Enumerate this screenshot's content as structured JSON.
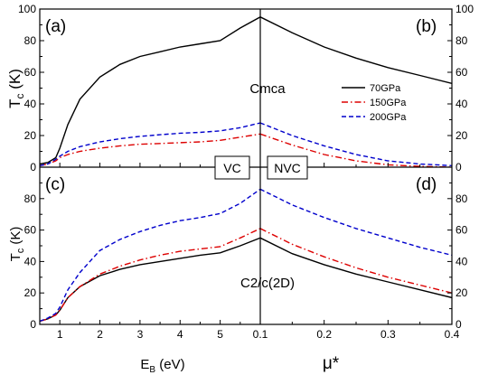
{
  "figure": {
    "y_axis_title": {
      "main": "T",
      "sub": "c",
      "unit": " (K)"
    },
    "x_axis_left_title": {
      "main": "E",
      "sub": "B",
      "unit": " (eV)"
    },
    "x_axis_right_title": "μ*"
  },
  "colors": {
    "p70": "#000000",
    "p150": "#dd0000",
    "p200": "#0000cc"
  },
  "chart_data": [
    {
      "id": "a",
      "panel_label": "(a)",
      "type": "line",
      "xlabel": "",
      "ylabel": "Tc (K)",
      "xlim": [
        0.5,
        6.0
      ],
      "ylim": [
        0,
        100
      ],
      "x_ticks": [
        1,
        2,
        3,
        4,
        5
      ],
      "y_ticks": [
        0,
        20,
        40,
        60,
        80,
        100
      ],
      "structure_label": "Cmca",
      "series": [
        {
          "name": "70GPa",
          "style": "solid",
          "color": "#000000",
          "x": [
            0.5,
            0.7,
            0.9,
            1.0,
            1.2,
            1.5,
            2.0,
            2.5,
            3.0,
            3.5,
            4.0,
            4.5,
            5.0,
            5.5,
            6.0
          ],
          "y": [
            2,
            3,
            6,
            12,
            27,
            43,
            57,
            65,
            70,
            73,
            76,
            78,
            80,
            88,
            95
          ]
        },
        {
          "name": "150GPa",
          "style": "dashdot",
          "color": "#dd0000",
          "x": [
            0.5,
            0.7,
            0.9,
            1.0,
            1.2,
            1.5,
            2.0,
            2.5,
            3.0,
            3.5,
            4.0,
            4.5,
            5.0,
            5.5,
            6.0
          ],
          "y": [
            1,
            2,
            4,
            6,
            8,
            10,
            12,
            13.5,
            14.5,
            15,
            15.5,
            16,
            17,
            19,
            21
          ]
        },
        {
          "name": "200GPa",
          "style": "dashed",
          "color": "#0000cc",
          "x": [
            0.5,
            0.7,
            0.9,
            1.0,
            1.2,
            1.5,
            2.0,
            2.5,
            3.0,
            3.5,
            4.0,
            4.5,
            5.0,
            5.5,
            6.0
          ],
          "y": [
            1,
            2,
            5,
            7,
            10,
            13,
            16,
            18,
            19.5,
            20.5,
            21.5,
            22,
            23,
            25,
            28
          ]
        }
      ]
    },
    {
      "id": "b",
      "panel_label": "(b)",
      "type": "line",
      "xlabel": "",
      "ylabel": "",
      "xlim": [
        0.1,
        0.4
      ],
      "ylim": [
        0,
        100
      ],
      "x_ticks": [
        0.1,
        0.2,
        0.3,
        0.4
      ],
      "y_ticks": [
        0,
        20,
        40,
        60,
        80,
        100
      ],
      "legend": {
        "position": "right",
        "entries": [
          "70GPa",
          "150GPa",
          "200GPa"
        ]
      },
      "series": [
        {
          "name": "70GPa",
          "style": "solid",
          "color": "#000000",
          "x": [
            0.1,
            0.15,
            0.2,
            0.25,
            0.3,
            0.35,
            0.4
          ],
          "y": [
            95,
            85,
            76,
            69,
            63,
            58,
            53
          ]
        },
        {
          "name": "150GPa",
          "style": "dashdot",
          "color": "#dd0000",
          "x": [
            0.1,
            0.15,
            0.2,
            0.25,
            0.3,
            0.35,
            0.4
          ],
          "y": [
            21,
            14,
            8,
            4,
            1.5,
            0.5,
            0
          ]
        },
        {
          "name": "200GPa",
          "style": "dashed",
          "color": "#0000cc",
          "x": [
            0.1,
            0.15,
            0.2,
            0.25,
            0.3,
            0.35,
            0.4
          ],
          "y": [
            28,
            20,
            13.5,
            8,
            4,
            2,
            1
          ]
        }
      ]
    },
    {
      "id": "c",
      "panel_label": "(c)",
      "type": "line",
      "xlabel": "EB (eV)",
      "ylabel": "Tc (K)",
      "xlim": [
        0.5,
        6.0
      ],
      "ylim": [
        0,
        100
      ],
      "x_ticks": [
        1,
        2,
        3,
        4,
        5
      ],
      "y_ticks": [
        0,
        20,
        40,
        60,
        80
      ],
      "box_label": "VC",
      "series": [
        {
          "name": "70GPa",
          "style": "solid",
          "color": "#000000",
          "x": [
            0.5,
            0.7,
            0.9,
            1.0,
            1.2,
            1.5,
            2.0,
            2.5,
            3.0,
            3.5,
            4.0,
            4.5,
            5.0,
            5.5,
            6.0
          ],
          "y": [
            2,
            3.5,
            6,
            9,
            17,
            24,
            31,
            35,
            38,
            40,
            42,
            44,
            45.5,
            50,
            55
          ]
        },
        {
          "name": "150GPa",
          "style": "dashdot",
          "color": "#dd0000",
          "x": [
            0.5,
            0.7,
            0.9,
            1.0,
            1.2,
            1.5,
            2.0,
            2.5,
            3.0,
            3.5,
            4.0,
            4.5,
            5.0,
            5.5,
            6.0
          ],
          "y": [
            2,
            3.5,
            6,
            9,
            17,
            24,
            32,
            37,
            41,
            44,
            46.5,
            48,
            49.5,
            55,
            61
          ]
        },
        {
          "name": "200GPa",
          "style": "dashed",
          "color": "#0000cc",
          "x": [
            0.5,
            0.7,
            0.9,
            1.0,
            1.2,
            1.5,
            2.0,
            2.5,
            3.0,
            3.5,
            4.0,
            4.5,
            5.0,
            5.5,
            6.0
          ],
          "y": [
            2,
            4,
            7,
            11,
            22,
            33,
            47,
            54,
            59,
            63,
            66,
            68,
            70.5,
            77,
            86
          ]
        }
      ]
    },
    {
      "id": "d",
      "panel_label": "(d)",
      "type": "line",
      "xlabel": "μ*",
      "ylabel": "",
      "xlim": [
        0.1,
        0.4
      ],
      "ylim": [
        0,
        100
      ],
      "x_ticks": [
        0.1,
        0.2,
        0.3,
        0.4
      ],
      "y_ticks": [
        0,
        20,
        40,
        60,
        80
      ],
      "box_label": "NVC",
      "structure_label": "C2/c(2D)",
      "series": [
        {
          "name": "70GPa",
          "style": "solid",
          "color": "#000000",
          "x": [
            0.1,
            0.15,
            0.2,
            0.25,
            0.3,
            0.35,
            0.4
          ],
          "y": [
            55,
            45,
            38,
            32,
            27,
            22,
            17
          ]
        },
        {
          "name": "150GPa",
          "style": "dashdot",
          "color": "#dd0000",
          "x": [
            0.1,
            0.15,
            0.2,
            0.25,
            0.3,
            0.35,
            0.4
          ],
          "y": [
            61,
            51,
            43,
            36,
            30,
            25,
            20
          ]
        },
        {
          "name": "200GPa",
          "style": "dashed",
          "color": "#0000cc",
          "x": [
            0.1,
            0.15,
            0.2,
            0.25,
            0.3,
            0.35,
            0.4
          ],
          "y": [
            86,
            76,
            68,
            61,
            55,
            49,
            44
          ]
        }
      ]
    }
  ]
}
